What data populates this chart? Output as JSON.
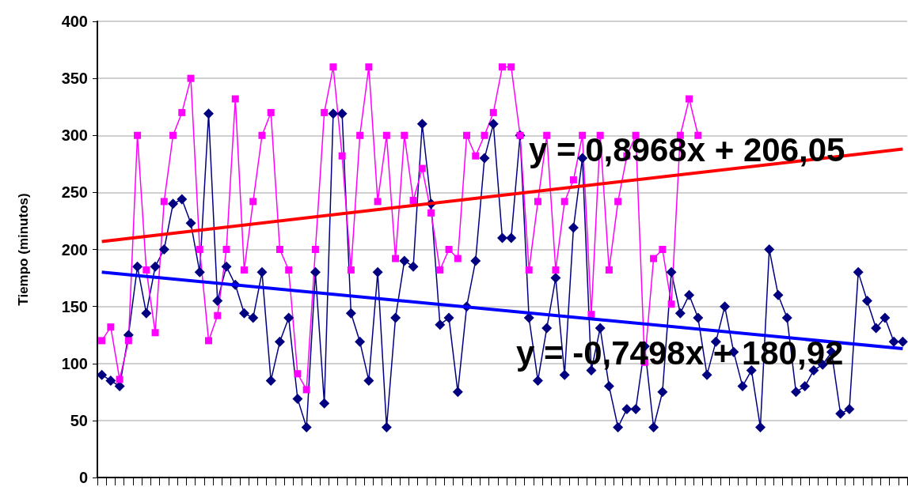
{
  "chart_data": {
    "type": "line",
    "ylabel": "Tiempo (minutos)",
    "categories": [
      null,
      null,
      null,
      null,
      null,
      null,
      null,
      null,
      null,
      null,
      null,
      null,
      null,
      null,
      null,
      null,
      null,
      null,
      null,
      null,
      null,
      null,
      null,
      null,
      null,
      null,
      null,
      null,
      null,
      null,
      null,
      null,
      null,
      null,
      null,
      null,
      null,
      null,
      null,
      null,
      null,
      null,
      null,
      null,
      null,
      null,
      null,
      null,
      null,
      null,
      null,
      null,
      null,
      null,
      null,
      null,
      null,
      null,
      null,
      null,
      null,
      null,
      null,
      null,
      null,
      null,
      null,
      null,
      null,
      null,
      null,
      null,
      null,
      null,
      null,
      null,
      null,
      null,
      null,
      null,
      null,
      null,
      null,
      null,
      null,
      null,
      null,
      null,
      null,
      null,
      null
    ],
    "series": [
      {
        "color": "#000080",
        "marker": "diamond",
        "values": [
          90,
          85,
          80,
          125,
          185,
          144,
          185,
          200,
          240,
          244,
          223,
          180,
          319,
          155,
          185,
          169,
          144,
          140,
          180,
          85,
          119,
          140,
          69,
          44,
          180,
          65,
          319,
          319,
          144,
          119,
          85,
          180,
          44,
          140,
          190,
          185,
          310,
          240,
          134,
          140,
          75,
          150,
          190,
          280,
          310,
          210,
          210,
          300,
          140,
          85,
          131,
          175,
          90,
          219,
          280,
          94,
          131,
          80,
          44,
          60,
          60,
          115,
          44,
          75,
          180,
          144,
          160,
          140,
          90,
          119,
          150,
          110,
          80,
          94,
          44,
          200,
          160,
          140,
          75,
          80,
          94,
          99,
          110,
          56,
          60,
          180,
          155,
          131,
          140,
          119,
          119
        ]
      },
      {
        "color": "#ff00ff",
        "marker": "square",
        "values": [
          120,
          132,
          86,
          120,
          300,
          182,
          127,
          242,
          300,
          320,
          350,
          200,
          120,
          142,
          200,
          332,
          182,
          242,
          300,
          320,
          200,
          182,
          91,
          77,
          200,
          320,
          360,
          282,
          182,
          300,
          360,
          242,
          300,
          192,
          300,
          243,
          271,
          232,
          182,
          200,
          192,
          300,
          282,
          300,
          320,
          360,
          360,
          300,
          182,
          242,
          300,
          182,
          242,
          261,
          300,
          143,
          300,
          182,
          242,
          282,
          300,
          101,
          192,
          200,
          152,
          300,
          332,
          300,
          null,
          null,
          null,
          null,
          null,
          null,
          null,
          null,
          null,
          null,
          null,
          null,
          null,
          null,
          null,
          null,
          null,
          null,
          null,
          null,
          null,
          null,
          null
        ]
      },
      {
        "color": "#ff0000",
        "marker": "none",
        "values": [
          207,
          null,
          null,
          null,
          null,
          null,
          null,
          null,
          null,
          null,
          null,
          null,
          null,
          null,
          null,
          null,
          null,
          null,
          null,
          null,
          null,
          null,
          null,
          null,
          null,
          null,
          null,
          null,
          null,
          null,
          null,
          null,
          null,
          null,
          null,
          null,
          null,
          null,
          null,
          null,
          null,
          null,
          null,
          null,
          null,
          null,
          null,
          null,
          null,
          null,
          null,
          null,
          null,
          null,
          null,
          null,
          null,
          null,
          null,
          null,
          null,
          null,
          null,
          null,
          null,
          null,
          null,
          null,
          null,
          null,
          null,
          null,
          null,
          null,
          null,
          null,
          null,
          null,
          null,
          null,
          null,
          null,
          null,
          null,
          null,
          null,
          null,
          null,
          null,
          null,
          288
        ]
      },
      {
        "color": "#0000ff",
        "marker": "none",
        "values": [
          180,
          null,
          null,
          null,
          null,
          null,
          null,
          null,
          null,
          null,
          null,
          null,
          null,
          null,
          null,
          null,
          null,
          null,
          null,
          null,
          null,
          null,
          null,
          null,
          null,
          null,
          null,
          null,
          null,
          null,
          null,
          null,
          null,
          null,
          null,
          null,
          null,
          null,
          null,
          null,
          null,
          null,
          null,
          null,
          null,
          null,
          null,
          null,
          null,
          null,
          null,
          null,
          null,
          null,
          null,
          null,
          null,
          null,
          null,
          null,
          null,
          null,
          null,
          null,
          null,
          null,
          null,
          null,
          null,
          null,
          null,
          null,
          null,
          null,
          null,
          null,
          null,
          null,
          null,
          null,
          null,
          null,
          null,
          null,
          null,
          null,
          null,
          null,
          null,
          null,
          113
        ]
      }
    ],
    "annotations": [
      "y = 0,8968x + 206,05",
      "y = -0,7498x + 180,92"
    ],
    "ylim": [
      0,
      400
    ],
    "yticks": [
      0,
      50,
      100,
      150,
      200,
      250,
      300,
      350,
      400
    ],
    "grid": "y"
  }
}
